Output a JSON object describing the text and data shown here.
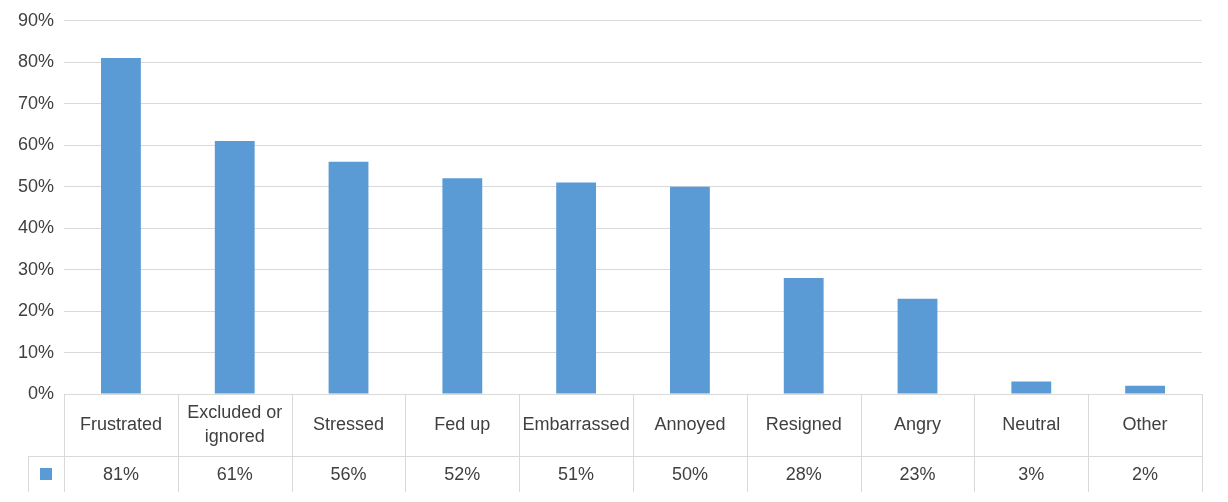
{
  "chart_data": {
    "type": "bar",
    "categories": [
      "Frustrated",
      "Excluded or ignored",
      "Stressed",
      "Fed up",
      "Embarrassed",
      "Annoyed",
      "Resigned",
      "Angry",
      "Neutral",
      "Other"
    ],
    "values": [
      81,
      61,
      56,
      52,
      51,
      50,
      28,
      23,
      3,
      2
    ],
    "value_labels": [
      "81%",
      "61%",
      "56%",
      "52%",
      "51%",
      "50%",
      "28%",
      "23%",
      "3%",
      "2%"
    ],
    "color": "#5b9bd5",
    "ylim": [
      0,
      90
    ],
    "yticks": [
      {
        "value": 0,
        "label": "0%"
      },
      {
        "value": 10,
        "label": "10%"
      },
      {
        "value": 20,
        "label": "20%"
      },
      {
        "value": 30,
        "label": "30%"
      },
      {
        "value": 40,
        "label": "40%"
      },
      {
        "value": 50,
        "label": "50%"
      },
      {
        "value": 60,
        "label": "60%"
      },
      {
        "value": 70,
        "label": "70%"
      },
      {
        "value": 80,
        "label": "80%"
      },
      {
        "value": 90,
        "label": "90%"
      }
    ],
    "grid": "y",
    "legend": false
  }
}
